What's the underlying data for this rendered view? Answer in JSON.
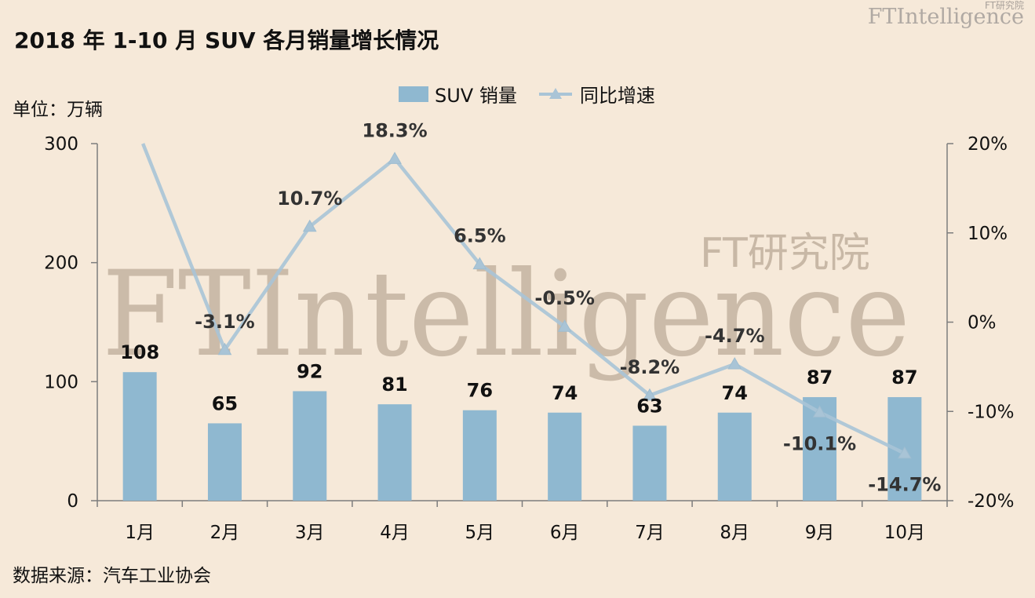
{
  "header": {
    "title": "2018 年 1-10 月 SUV 各月销量增长情况",
    "logo_small": "FT研究院",
    "logo_main": "FTIntelligence"
  },
  "watermark": {
    "main": "FTIntelligence",
    "sub": "FT研究院"
  },
  "unit_label": "单位：万辆",
  "source_label": "数据来源：汽车工业协会",
  "colors": {
    "bar": "#8fb8d0",
    "line": "#a9c4d6",
    "background": "#f6e9d9",
    "axis": "#7d7d7d"
  },
  "chart_data": {
    "type": "bar",
    "categories": [
      "1月",
      "2月",
      "3月",
      "4月",
      "5月",
      "6月",
      "7月",
      "8月",
      "9月",
      "10月"
    ],
    "series": [
      {
        "name": "SUV 销量",
        "type": "bar",
        "axis": "left",
        "values": [
          108,
          65,
          92,
          81,
          76,
          74,
          63,
          74,
          87,
          87
        ],
        "labels": [
          "108",
          "65",
          "92",
          "81",
          "76",
          "74",
          "63",
          "74",
          "87",
          "87"
        ]
      },
      {
        "name": "同比增速",
        "type": "line",
        "axis": "right",
        "marker": "triangle",
        "values": [
          null,
          -3.1,
          10.7,
          18.3,
          6.5,
          -0.5,
          -8.2,
          -4.7,
          -10.1,
          -14.7
        ],
        "labels": [
          "",
          "-3.1%",
          "10.7%",
          "18.3%",
          "6.5%",
          "-0.5%",
          "-8.2%",
          "-4.7%",
          "-10.1%",
          "-14.7%"
        ]
      }
    ],
    "line_start_offscale": true,
    "y_left": {
      "min": 0,
      "max": 300,
      "ticks": [
        "0",
        "100",
        "200",
        "300"
      ]
    },
    "y_right": {
      "min": -20,
      "max": 20,
      "ticks": [
        "-20%",
        "-10%",
        "0%",
        "10%",
        "20%"
      ]
    },
    "legend_position": "top-center",
    "grid": false
  }
}
